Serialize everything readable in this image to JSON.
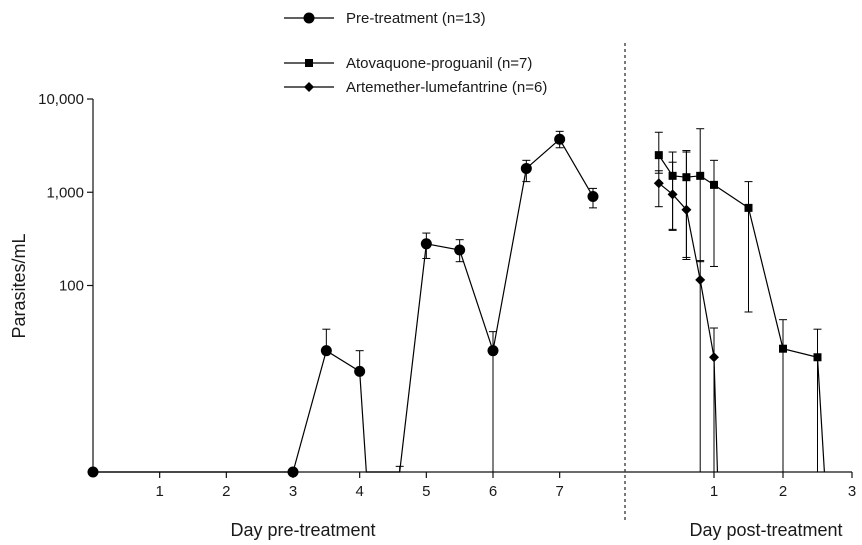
{
  "chart_data": {
    "type": "line",
    "ylabel": "Parasites/mL",
    "yscale": "log",
    "ylim": [
      1,
      10000
    ],
    "yticks": [
      {
        "value": 100,
        "label": "100"
      },
      {
        "value": 1000,
        "label": "1,000"
      },
      {
        "value": 10000,
        "label": "10,000"
      }
    ],
    "grid": false,
    "panels": [
      {
        "xlabel": "Day pre-treatment",
        "xlim": [
          0,
          7.8
        ],
        "xticks": [
          1,
          2,
          3,
          4,
          5,
          6,
          7
        ]
      },
      {
        "xlabel": "Day post-treatment",
        "xlim": [
          0,
          3
        ],
        "xticks": [
          1,
          2,
          3
        ]
      }
    ],
    "legend": [
      {
        "name": "Pre-treatment (n=13)",
        "marker": "circle"
      },
      {
        "name": "Atovaquone-proguanil (n=7)",
        "marker": "square"
      },
      {
        "name": "Artemether-lumefantrine (n=6)",
        "marker": "diamond"
      }
    ],
    "series": [
      {
        "name": "Pre-treatment (n=13)",
        "panel": 0,
        "marker": "circle",
        "points": [
          {
            "x": 0,
            "y": 1
          },
          {
            "x": 3,
            "y": 1
          },
          {
            "x": 3.5,
            "y": 20,
            "err": [
              null,
              34
            ]
          },
          {
            "x": 4,
            "y": 12,
            "err": [
              null,
              20
            ]
          },
          {
            "x": 4.1,
            "y": 1,
            "marker": false
          },
          {
            "x": 4.6,
            "y": 1,
            "marker": false,
            "err": [
              null,
              1.15
            ]
          },
          {
            "x": 5,
            "y": 280,
            "err": [
              195,
              365
            ]
          },
          {
            "x": 5.5,
            "y": 240,
            "err": [
              180,
              310
            ]
          },
          {
            "x": 6,
            "y": 20,
            "err": [
              1,
              32
            ]
          },
          {
            "x": 6.5,
            "y": 1800,
            "err": [
              1300,
              2200
            ]
          },
          {
            "x": 7,
            "y": 3700,
            "err": [
              3000,
              4500
            ]
          },
          {
            "x": 7.5,
            "y": 900,
            "err": [
              680,
              1100
            ]
          }
        ]
      },
      {
        "name": "Atovaquone-proguanil (n=7)",
        "panel": 1,
        "marker": "square",
        "points": [
          {
            "x": 0.2,
            "y": 2500,
            "err": [
              1600,
              4400
            ]
          },
          {
            "x": 0.4,
            "y": 1500,
            "err": [
              400,
              2700
            ]
          },
          {
            "x": 0.6,
            "y": 1450,
            "err": [
              200,
              2800
            ]
          },
          {
            "x": 0.8,
            "y": 1500,
            "err": [
              180,
              4800
            ]
          },
          {
            "x": 1,
            "y": 1200,
            "err": [
              160,
              2200
            ]
          },
          {
            "x": 1.5,
            "y": 680,
            "err": [
              52,
              1300
            ]
          },
          {
            "x": 2,
            "y": 21,
            "err": [
              1,
              43
            ]
          },
          {
            "x": 2.5,
            "y": 17,
            "err": [
              1,
              34
            ]
          },
          {
            "x": 2.6,
            "y": 1,
            "marker": false
          }
        ]
      },
      {
        "name": "Artemether-lumefantrine (n=6)",
        "panel": 1,
        "marker": "diamond",
        "points": [
          {
            "x": 0.2,
            "y": 1250,
            "err": [
              700,
              1700
            ]
          },
          {
            "x": 0.4,
            "y": 950,
            "err": [
              390,
              2100
            ]
          },
          {
            "x": 0.6,
            "y": 650,
            "err": [
              190,
              2700
            ]
          },
          {
            "x": 0.8,
            "y": 115,
            "err": [
              1,
              185
            ]
          },
          {
            "x": 1,
            "y": 17,
            "err": [
              1,
              35
            ]
          },
          {
            "x": 1.05,
            "y": 1,
            "marker": false
          }
        ]
      }
    ]
  }
}
